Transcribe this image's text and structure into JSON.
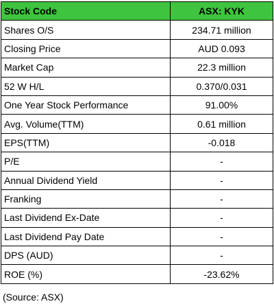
{
  "colors": {
    "header_bg": "#3ec43e",
    "border": "#000000"
  },
  "table": {
    "header": {
      "label": "Stock Code",
      "value": "ASX: KYK"
    },
    "rows": [
      {
        "label": "Shares O/S",
        "value": "234.71 million"
      },
      {
        "label": "Closing Price",
        "value": "AUD 0.093"
      },
      {
        "label": "Market Cap",
        "value": "22.3 million"
      },
      {
        "label": "52 W H/L",
        "value": "0.370/0.031"
      },
      {
        "label": "One Year Stock Performance",
        "value": "91.00%"
      },
      {
        "label": "Avg. Volume(TTM)",
        "value": "0.61 million"
      },
      {
        "label": "EPS(TTM)",
        "value": "-0.018"
      },
      {
        "label": "P/E",
        "value": "-"
      },
      {
        "label": "Annual Dividend Yield",
        "value": "-"
      },
      {
        "label": "Franking",
        "value": "-"
      },
      {
        "label": "Last Dividend Ex-Date",
        "value": "-"
      },
      {
        "label": "Last Dividend Pay Date",
        "value": "-"
      },
      {
        "label": "DPS (AUD)",
        "value": "-"
      },
      {
        "label": "ROE (%)",
        "value": "-23.62%"
      }
    ]
  },
  "source_note": "(Source: ASX)"
}
